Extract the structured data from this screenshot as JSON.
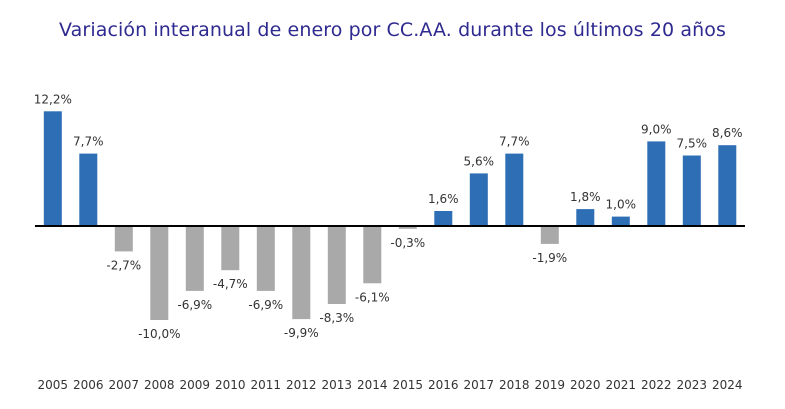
{
  "chart_data": {
    "type": "bar",
    "title": "Variación interanual de enero por CC.AA. durante los últimos 20 años",
    "xlabel": "",
    "ylabel": "",
    "categories": [
      "2005",
      "2006",
      "2007",
      "2008",
      "2009",
      "2010",
      "2011",
      "2012",
      "2013",
      "2014",
      "2015",
      "2016",
      "2017",
      "2018",
      "2019",
      "2020",
      "2021",
      "2022",
      "2023",
      "2024"
    ],
    "values": [
      12.2,
      7.7,
      -2.7,
      -10.0,
      -6.9,
      -4.7,
      -6.9,
      -9.9,
      -8.3,
      -6.1,
      -0.3,
      1.6,
      5.6,
      7.7,
      -1.9,
      1.8,
      1.0,
      9.0,
      7.5,
      8.6
    ],
    "value_labels": [
      "12,2%",
      "7,7%",
      "-2,7%",
      "-10,0%",
      "-6,9%",
      "-4,7%",
      "-6,9%",
      "-9,9%",
      "-8,3%",
      "-6,1%",
      "-0,3%",
      "1,6%",
      "5,6%",
      "7,7%",
      "-1,9%",
      "1,8%",
      "1,0%",
      "9,0%",
      "7,5%",
      "8,6%"
    ],
    "ylim": [
      -12.5,
      13.5
    ],
    "grid": false,
    "legend": "none",
    "colors": {
      "positive": "#2e6eb5",
      "negative": "#a9a9a9",
      "axis": "#000000"
    }
  }
}
